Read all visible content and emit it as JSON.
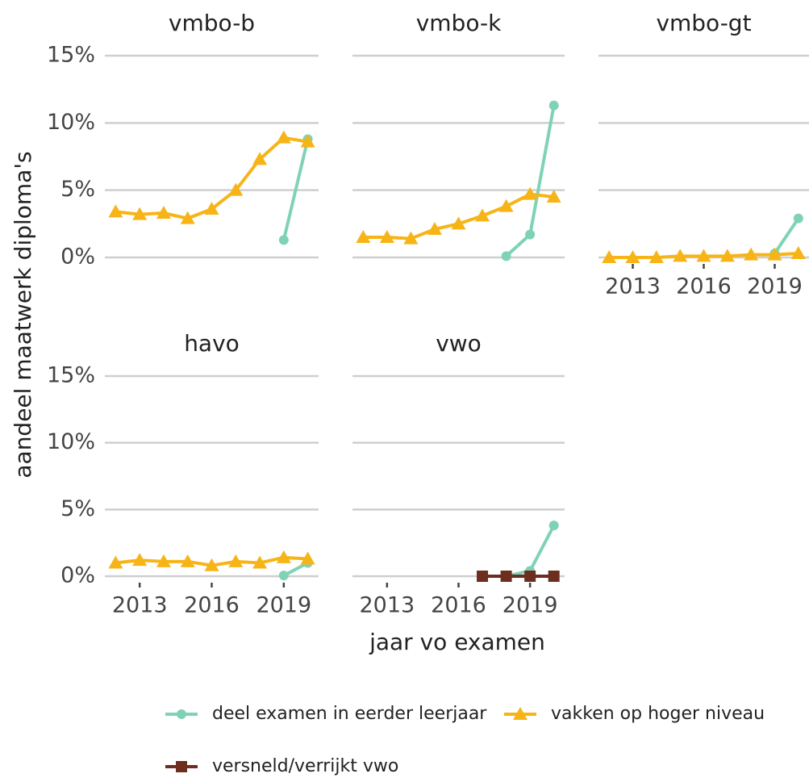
{
  "y_label": "aandeel maatwerk diploma's",
  "x_label": "jaar vo examen",
  "chart_data": [
    {
      "type": "line",
      "title": "vmbo-b",
      "x": [
        2012,
        2013,
        2014,
        2015,
        2016,
        2017,
        2018,
        2019,
        2020
      ],
      "xlim": [
        2011.55,
        2020.45
      ],
      "ylim": [
        0,
        15
      ],
      "yticks": [
        {
          "value": 0,
          "label": "0%"
        },
        {
          "value": 5,
          "label": "5%"
        },
        {
          "value": 10,
          "label": "10%"
        },
        {
          "value": 15,
          "label": "15%"
        }
      ],
      "series": [
        {
          "name": "deel examen in eerder leerjaar",
          "color": "#7fd3b4",
          "marker": "circle",
          "values": [
            null,
            null,
            null,
            null,
            null,
            null,
            null,
            1.3,
            8.8
          ]
        },
        {
          "name": "vakken op hoger niveau",
          "color": "#f7b417",
          "marker": "triangle",
          "values": [
            3.4,
            3.2,
            3.3,
            2.9,
            3.6,
            5.0,
            7.3,
            8.9,
            8.6
          ]
        },
        {
          "name": "versneld/verrijkt vwo",
          "color": "#6b2e1f",
          "marker": "square",
          "values": [
            null,
            null,
            null,
            null,
            null,
            null,
            null,
            null,
            null
          ]
        }
      ]
    },
    {
      "type": "line",
      "title": "vmbo-k",
      "x": [
        2012,
        2013,
        2014,
        2015,
        2016,
        2017,
        2018,
        2019,
        2020
      ],
      "xlim": [
        2011.55,
        2020.45
      ],
      "ylim": [
        0,
        15
      ],
      "yticks": [
        0,
        5,
        10,
        15
      ],
      "series": [
        {
          "name": "deel examen in eerder leerjaar",
          "color": "#7fd3b4",
          "marker": "circle",
          "values": [
            null,
            null,
            null,
            null,
            null,
            null,
            0.1,
            1.7,
            11.3
          ]
        },
        {
          "name": "vakken op hoger niveau",
          "color": "#f7b417",
          "marker": "triangle",
          "values": [
            1.5,
            1.5,
            1.4,
            2.1,
            2.5,
            3.1,
            3.8,
            4.7,
            4.5
          ]
        },
        {
          "name": "versneld/verrijkt vwo",
          "color": "#6b2e1f",
          "marker": "square",
          "values": [
            null,
            null,
            null,
            null,
            null,
            null,
            null,
            null,
            null
          ]
        }
      ]
    },
    {
      "type": "line",
      "title": "vmbo-gt",
      "x": [
        2012,
        2013,
        2014,
        2015,
        2016,
        2017,
        2018,
        2019,
        2020
      ],
      "xlim": [
        2011.55,
        2020.45
      ],
      "ylim": [
        0,
        15
      ],
      "yticks": [
        0,
        5,
        10,
        15
      ],
      "xticks": [
        2013,
        2016,
        2019
      ],
      "series": [
        {
          "name": "deel examen in eerder leerjaar",
          "color": "#7fd3b4",
          "marker": "circle",
          "values": [
            null,
            null,
            null,
            null,
            null,
            null,
            null,
            0.3,
            2.9
          ]
        },
        {
          "name": "vakken op hoger niveau",
          "color": "#f7b417",
          "marker": "triangle",
          "values": [
            0,
            0,
            0,
            0.1,
            0.1,
            0.1,
            0.2,
            0.2,
            0.3
          ]
        },
        {
          "name": "versneld/verrijkt vwo",
          "color": "#6b2e1f",
          "marker": "square",
          "values": [
            null,
            null,
            null,
            null,
            null,
            null,
            null,
            null,
            null
          ]
        }
      ]
    },
    {
      "type": "line",
      "title": "havo",
      "x": [
        2012,
        2013,
        2014,
        2015,
        2016,
        2017,
        2018,
        2019,
        2020
      ],
      "xlim": [
        2011.55,
        2020.45
      ],
      "ylim": [
        0,
        15
      ],
      "yticks": [
        {
          "value": 0,
          "label": "0%"
        },
        {
          "value": 5,
          "label": "5%"
        },
        {
          "value": 10,
          "label": "10%"
        },
        {
          "value": 15,
          "label": "15%"
        }
      ],
      "xticks": [
        2013,
        2016,
        2019
      ],
      "series": [
        {
          "name": "deel examen in eerder leerjaar",
          "color": "#7fd3b4",
          "marker": "circle",
          "values": [
            null,
            null,
            null,
            null,
            null,
            null,
            null,
            0.05,
            1.0
          ]
        },
        {
          "name": "vakken op hoger niveau",
          "color": "#f7b417",
          "marker": "triangle",
          "values": [
            1.0,
            1.2,
            1.1,
            1.1,
            0.8,
            1.1,
            1.0,
            1.4,
            1.3
          ]
        },
        {
          "name": "versneld/verrijkt vwo",
          "color": "#6b2e1f",
          "marker": "square",
          "values": [
            null,
            null,
            null,
            null,
            null,
            null,
            null,
            null,
            null
          ]
        }
      ]
    },
    {
      "type": "line",
      "title": "vwo",
      "x": [
        2012,
        2013,
        2014,
        2015,
        2016,
        2017,
        2018,
        2019,
        2020
      ],
      "xlim": [
        2011.55,
        2020.45
      ],
      "ylim": [
        0,
        15
      ],
      "yticks": [
        0,
        5,
        10,
        15
      ],
      "xticks": [
        2013,
        2016,
        2019
      ],
      "series": [
        {
          "name": "deel examen in eerder leerjaar",
          "color": "#7fd3b4",
          "marker": "circle",
          "values": [
            null,
            null,
            null,
            null,
            null,
            null,
            0,
            0.4,
            3.8
          ]
        },
        {
          "name": "vakken op hoger niveau",
          "color": "#f7b417",
          "marker": "triangle",
          "values": [
            null,
            null,
            null,
            null,
            null,
            null,
            null,
            null,
            null
          ]
        },
        {
          "name": "versneld/verrijkt vwo",
          "color": "#6b2e1f",
          "marker": "square",
          "values": [
            null,
            null,
            null,
            null,
            null,
            0,
            0,
            0,
            0
          ]
        }
      ]
    }
  ]
}
